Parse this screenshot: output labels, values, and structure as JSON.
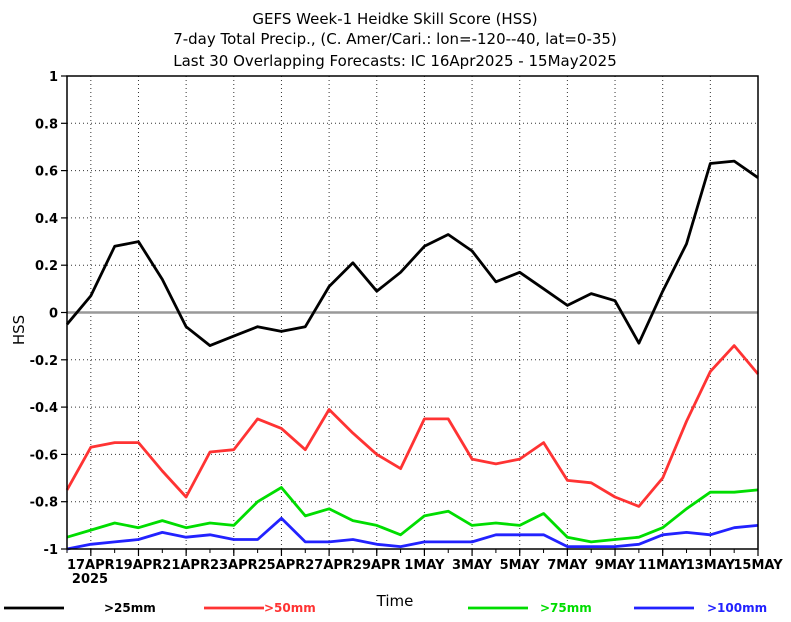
{
  "chart_data": {
    "type": "line",
    "title_lines": [
      "GEFS Week-1 Heidke Skill Score (HSS)",
      "7-day Total Precip., (C. Amer/Cari.: lon=-120--40, lat=0-35)",
      "Last 30 Overlapping Forecasts: IC 16Apr2025 - 15May2025"
    ],
    "xlabel": "Time",
    "ylabel": "HSS",
    "ylim": [
      -1,
      1
    ],
    "yticks": [
      "-1",
      "-0.8",
      "-0.6",
      "-0.4",
      "-0.2",
      "0",
      "0.2",
      "0.4",
      "0.6",
      "0.8",
      "1"
    ],
    "xticks": [
      "17APR",
      "19APR",
      "21APR",
      "23APR",
      "25APR",
      "27APR",
      "29APR",
      "1MAY",
      "3MAY",
      "5MAY",
      "7MAY",
      "9MAY",
      "11MAY",
      "13MAY",
      "15MAY"
    ],
    "year_label": "2025",
    "grid": true,
    "zero_line": true,
    "x": [
      "16APR",
      "17APR",
      "18APR",
      "19APR",
      "20APR",
      "21APR",
      "22APR",
      "23APR",
      "24APR",
      "25APR",
      "26APR",
      "27APR",
      "28APR",
      "29APR",
      "30APR",
      "1MAY",
      "2MAY",
      "3MAY",
      "4MAY",
      "5MAY",
      "6MAY",
      "7MAY",
      "8MAY",
      "9MAY",
      "10MAY",
      "11MAY",
      "12MAY",
      "13MAY",
      "14MAY",
      "15MAY"
    ],
    "series": [
      {
        "name": ">25mm",
        "color": "#000000",
        "values": [
          -0.05,
          0.07,
          0.28,
          0.3,
          0.14,
          -0.06,
          -0.14,
          -0.1,
          -0.06,
          -0.08,
          -0.06,
          0.11,
          0.21,
          0.09,
          0.17,
          0.28,
          0.33,
          0.26,
          0.13,
          0.17,
          0.1,
          0.03,
          0.08,
          0.05,
          -0.13,
          0.09,
          0.29,
          0.63,
          0.64,
          0.57
        ]
      },
      {
        "name": ">50mm",
        "color": "#ff3333",
        "values": [
          -0.75,
          -0.57,
          -0.55,
          -0.55,
          -0.67,
          -0.78,
          -0.59,
          -0.58,
          -0.45,
          -0.49,
          -0.58,
          -0.41,
          -0.51,
          -0.6,
          -0.66,
          -0.45,
          -0.45,
          -0.62,
          -0.64,
          -0.62,
          -0.55,
          -0.71,
          -0.72,
          -0.78,
          -0.82,
          -0.7,
          -0.46,
          -0.25,
          -0.14,
          -0.26
        ]
      },
      {
        "name": ">75mm",
        "color": "#00dd00",
        "values": [
          -0.95,
          -0.92,
          -0.89,
          -0.91,
          -0.88,
          -0.91,
          -0.89,
          -0.9,
          -0.8,
          -0.74,
          -0.86,
          -0.83,
          -0.88,
          -0.9,
          -0.94,
          -0.86,
          -0.84,
          -0.9,
          -0.89,
          -0.9,
          -0.85,
          -0.95,
          -0.97,
          -0.96,
          -0.95,
          -0.91,
          -0.83,
          -0.76,
          -0.76,
          -0.75
        ]
      },
      {
        "name": ">100mm",
        "color": "#2222ff",
        "values": [
          -1.0,
          -0.98,
          -0.97,
          -0.96,
          -0.93,
          -0.95,
          -0.94,
          -0.96,
          -0.96,
          -0.87,
          -0.97,
          -0.97,
          -0.96,
          -0.98,
          -0.99,
          -0.97,
          -0.97,
          -0.97,
          -0.94,
          -0.94,
          -0.94,
          -0.99,
          -0.99,
          -0.99,
          -0.98,
          -0.94,
          -0.93,
          -0.94,
          -0.91,
          -0.9
        ]
      }
    ]
  }
}
